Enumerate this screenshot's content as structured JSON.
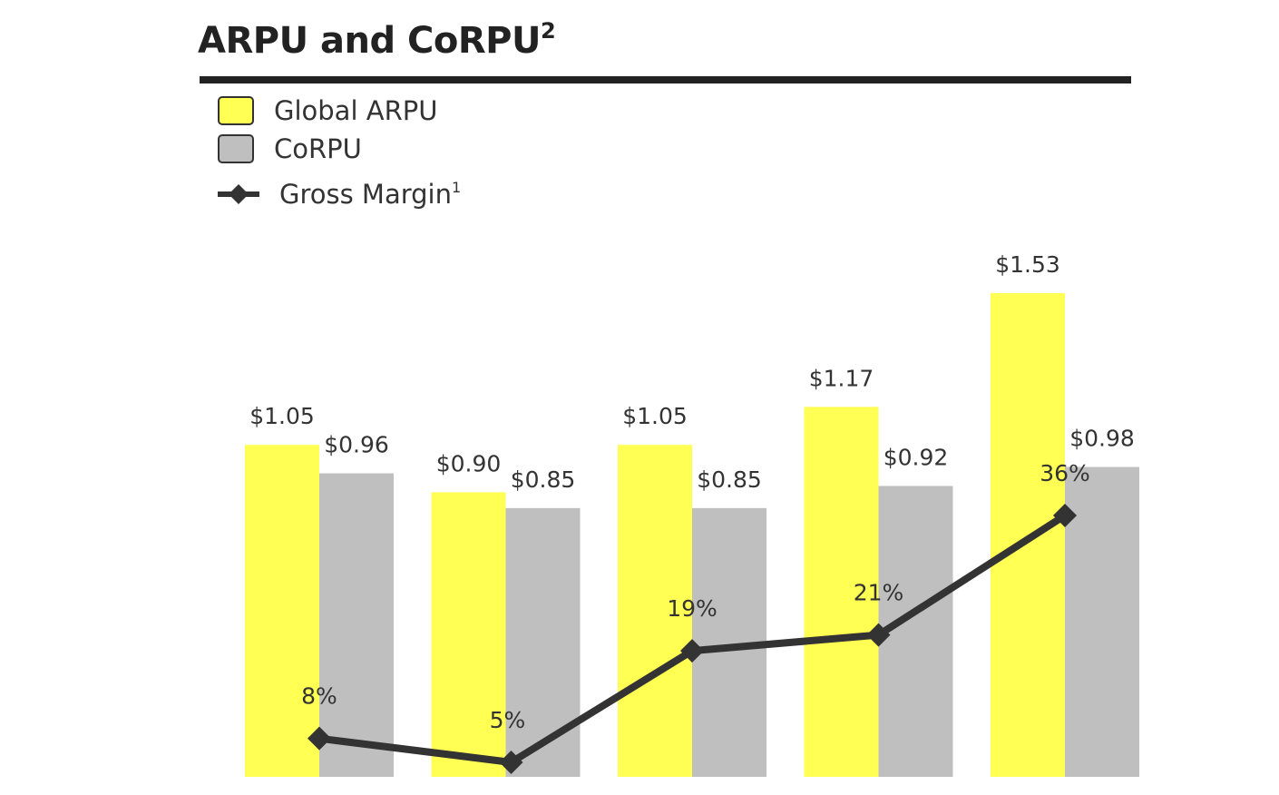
{
  "chart_data": {
    "type": "bar",
    "title": "ARPU and CoRPU",
    "title_superscript": "2",
    "categories": [
      "",
      "",
      "",
      "",
      ""
    ],
    "series": [
      {
        "name": "Global ARPU",
        "values": [
          1.05,
          0.9,
          1.05,
          1.17,
          1.53
        ],
        "labels": [
          "$1.05",
          "$0.90",
          "$1.05",
          "$1.17",
          "$1.53"
        ],
        "color": "#FFFF54"
      },
      {
        "name": "CoRPU",
        "values": [
          0.96,
          0.85,
          0.85,
          0.92,
          0.98
        ],
        "labels": [
          "$0.96",
          "$0.85",
          "$0.85",
          "$0.92",
          "$0.98"
        ],
        "color": "#BFBFBF"
      }
    ],
    "line_series": {
      "name": "Gross Margin",
      "name_superscript": "1",
      "values": [
        8,
        5,
        19,
        21,
        36
      ],
      "labels": [
        "8%",
        "5%",
        "19%",
        "21%",
        "36%"
      ],
      "color": "#333333",
      "marker": "diamond"
    },
    "legend_position": "top-left",
    "grid": false,
    "xlabel": "",
    "ylabel": ""
  }
}
